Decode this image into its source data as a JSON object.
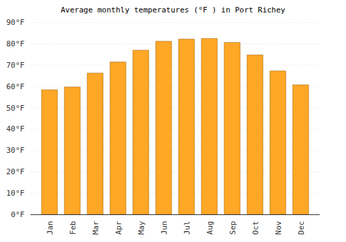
{
  "chart_data": {
    "type": "bar",
    "title": "Average monthly temperatures (°F ) in Port Richey",
    "categories": [
      "Jan",
      "Feb",
      "Mar",
      "Apr",
      "May",
      "Jun",
      "Jul",
      "Aug",
      "Sep",
      "Oct",
      "Nov",
      "Dec"
    ],
    "values": [
      58.3,
      59.6,
      66.1,
      71.3,
      76.8,
      81.0,
      82.0,
      82.3,
      80.4,
      74.6,
      67.1,
      60.6
    ],
    "color": "#ffa726",
    "ylim": [
      0,
      90
    ],
    "yticks": [
      {
        "value": 0,
        "label": "0°F"
      },
      {
        "value": 10,
        "label": "10°F"
      },
      {
        "value": 20,
        "label": "20°F"
      },
      {
        "value": 30,
        "label": "30°F"
      },
      {
        "value": 40,
        "label": "40°F"
      },
      {
        "value": 50,
        "label": "50°F"
      },
      {
        "value": 60,
        "label": "60°F"
      },
      {
        "value": 70,
        "label": "70°F"
      },
      {
        "value": 80,
        "label": "80°F"
      },
      {
        "value": 90,
        "label": "90°F"
      }
    ],
    "grid": true
  }
}
